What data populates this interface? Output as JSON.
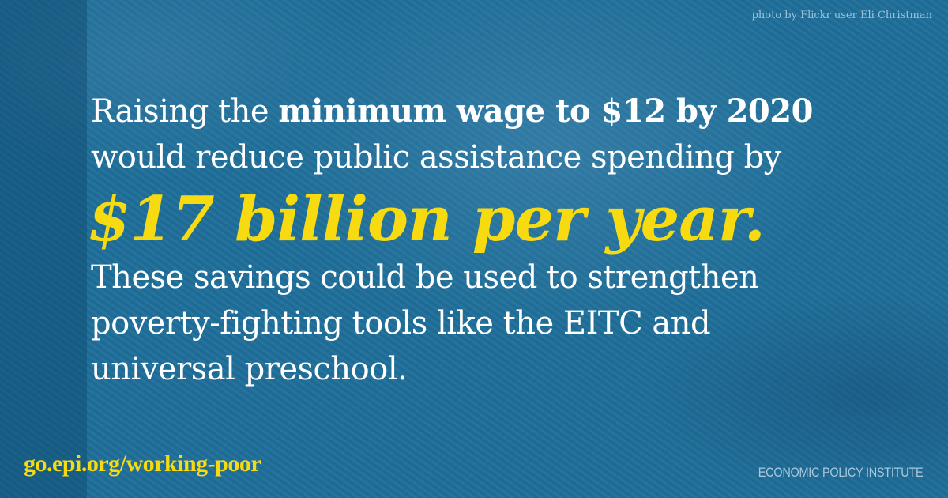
{
  "credit": "photo by Flickr user Eli Christman",
  "headline": {
    "line1_prefix": "Raising the ",
    "line1_bold": "minimum wage to $12 by 2020",
    "line2": "would reduce public assistance spending by",
    "highlight": "$17 billion per year.",
    "line4": "These savings could be used to strengthen",
    "line5": "poverty-fighting tools like the EITC and",
    "line6": "universal preschool."
  },
  "footer": {
    "url": "go.epi.org/working-poor",
    "organization": "ECONOMIC POLICY INSTITUTE"
  },
  "colors": {
    "background": "#1f6f9a",
    "accent": "#f7da10",
    "text": "#ffffff"
  }
}
